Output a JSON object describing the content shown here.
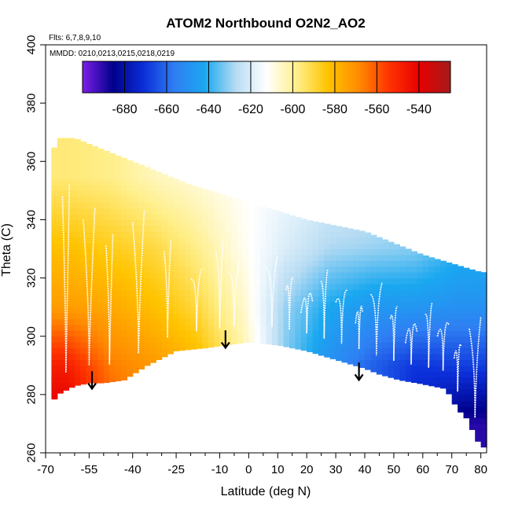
{
  "chart_data": {
    "type": "heatmap",
    "title": "ATOM2 Northbound O2N2_AO2",
    "subtitle_flights": "Flts: 6,7,8,9,10",
    "subtitle_dates": "MMDD: 0210,0213,0215,0218,0219",
    "xlabel": "Latitude (deg N)",
    "ylabel": "Theta (C)",
    "xlim": [
      -70,
      82
    ],
    "ylim": [
      260,
      400
    ],
    "x_ticks": [
      -70,
      -55,
      -40,
      -25,
      -10,
      0,
      10,
      20,
      30,
      40,
      50,
      60,
      70,
      80
    ],
    "y_ticks": [
      260,
      280,
      300,
      320,
      340,
      360,
      380,
      400
    ],
    "colorbar": {
      "range": [
        -700,
        -525
      ],
      "ticks": [
        -680,
        -660,
        -640,
        -620,
        -600,
        -580,
        -560,
        -540
      ],
      "colors": [
        "#7d1fe8",
        "#00008b",
        "#0b2fd9",
        "#2f7ff3",
        "#1aa8f0",
        "#b7dcf3",
        "#ffffff",
        "#ffef8a",
        "#ffc400",
        "#ff8c00",
        "#ff3300",
        "#e60000",
        "#a51b1b"
      ]
    },
    "surface_boundary": {
      "lat": [
        -68,
        -66,
        -60,
        -55,
        -50,
        -43,
        -35,
        -25,
        -15,
        -8,
        0,
        10,
        20,
        30,
        40,
        45,
        52,
        58,
        63,
        68,
        72,
        75,
        80
      ],
      "theta": [
        277,
        280,
        283,
        284,
        284,
        285,
        290,
        295,
        296,
        297,
        298,
        297,
        295,
        292,
        289,
        287,
        285,
        284,
        283,
        282,
        275,
        272,
        262
      ]
    },
    "top_boundary": {
      "lat": [
        -70,
        -66,
        -60,
        -55,
        -50,
        -40,
        -30,
        -20,
        -10,
        0,
        10,
        20,
        30,
        40,
        50,
        60,
        70,
        80
      ],
      "theta": [
        355,
        368,
        368,
        366,
        364,
        360,
        356,
        352,
        349,
        346,
        343,
        340,
        338,
        336,
        332,
        328,
        325,
        322
      ]
    },
    "field_grid": {
      "lat_edges": [
        -70,
        -55,
        -40,
        -25,
        -10,
        5,
        20,
        35,
        50,
        65,
        82
      ],
      "theta_edges": [
        260,
        280,
        300,
        320,
        340,
        370
      ],
      "values": [
        [
          -536,
          -560,
          -570,
          -585,
          -600,
          -610,
          -635,
          -655,
          -675,
          -690
        ],
        [
          -548,
          -566,
          -572,
          -580,
          -600,
          -632,
          -650,
          -662,
          -670,
          -668
        ],
        [
          -573,
          -576,
          -582,
          -590,
          -605,
          -630,
          -642,
          -648,
          -648,
          -650
        ],
        [
          -582,
          -586,
          -590,
          -598,
          -610,
          -620,
          -628,
          -630,
          -632,
          -640
        ],
        [
          -596,
          -598,
          -604,
          -608,
          -612,
          -615,
          -618,
          -620,
          -624,
          -624
        ]
      ]
    },
    "profile_latitudes": [
      -63,
      -55,
      -48,
      -38,
      -28,
      -18,
      -10,
      -5,
      2,
      8,
      14,
      20,
      26,
      32,
      38,
      44,
      50,
      56,
      62,
      67,
      72,
      78
    ],
    "arrows": [
      {
        "lat": -54,
        "theta": 288
      },
      {
        "lat": -8,
        "theta": 302
      },
      {
        "lat": 38,
        "theta": 291
      }
    ]
  }
}
